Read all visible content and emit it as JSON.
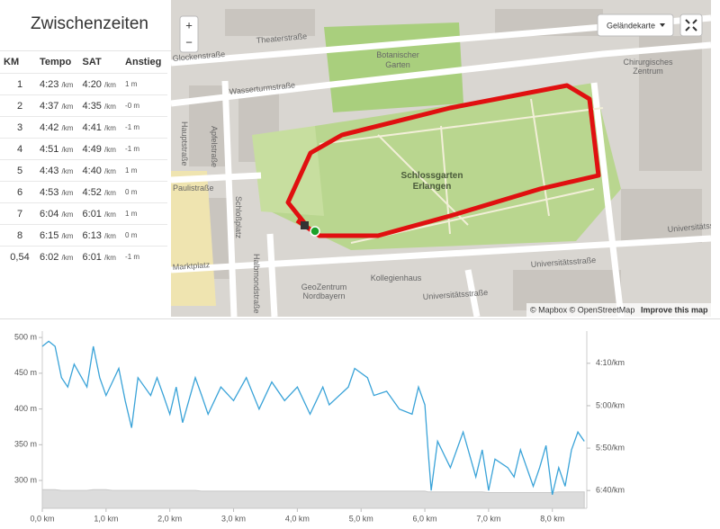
{
  "splits": {
    "title": "Zwischenzeiten",
    "headers": [
      "KM",
      "Tempo",
      "SAT",
      "Anstieg"
    ],
    "unit": "/km",
    "rows": [
      {
        "km": "1",
        "pace": "4:23",
        "sat": "4:20",
        "elev": "1 m"
      },
      {
        "km": "2",
        "pace": "4:37",
        "sat": "4:35",
        "elev": "-0 m"
      },
      {
        "km": "3",
        "pace": "4:42",
        "sat": "4:41",
        "elev": "-1 m"
      },
      {
        "km": "4",
        "pace": "4:51",
        "sat": "4:49",
        "elev": "-1 m"
      },
      {
        "km": "5",
        "pace": "4:43",
        "sat": "4:40",
        "elev": "1 m"
      },
      {
        "km": "6",
        "pace": "4:53",
        "sat": "4:52",
        "elev": "0 m"
      },
      {
        "km": "7",
        "pace": "6:04",
        "sat": "6:01",
        "elev": "1 m"
      },
      {
        "km": "8",
        "pace": "6:15",
        "sat": "6:13",
        "elev": "0 m"
      },
      {
        "km": "0,54",
        "pace": "6:02",
        "sat": "6:01",
        "elev": "-1 m"
      }
    ]
  },
  "map": {
    "zoom_in": "+",
    "zoom_out": "−",
    "layer": "Geländekarte",
    "attribution": "© Mapbox © OpenStreetMap",
    "improve": "Improve this map",
    "labels": [
      "Theaterstraße",
      "Glockenstraße",
      "Wasserturmstraße",
      "Botanischer",
      "Garten",
      "Chirurgisches",
      "Zentrum",
      "Schlossgarten",
      "Erlangen",
      "Apfelstraße",
      "Hauptstraße",
      "Paulistraße",
      "Schloßplatz",
      "Marktplatz",
      "Halbmondstraße",
      "GeoZentrum",
      "Nordbayern",
      "Kollegienhaus",
      "Universitätsstraße",
      "Universitätsstraße",
      "Universitätsstraße"
    ]
  },
  "chart_data": {
    "type": "line",
    "x": [
      0.0,
      0.1,
      0.2,
      0.3,
      0.4,
      0.5,
      0.7,
      0.8,
      0.9,
      1.0,
      1.1,
      1.2,
      1.3,
      1.4,
      1.5,
      1.7,
      1.8,
      1.9,
      2.0,
      2.1,
      2.2,
      2.4,
      2.5,
      2.6,
      2.8,
      3.0,
      3.2,
      3.4,
      3.6,
      3.8,
      4.0,
      4.2,
      4.4,
      4.5,
      4.8,
      4.9,
      5.1,
      5.2,
      5.4,
      5.6,
      5.8,
      5.9,
      6.0,
      6.05,
      6.1,
      6.2,
      6.4,
      6.6,
      6.8,
      6.9,
      7.0,
      7.1,
      7.3,
      7.4,
      7.5,
      7.7,
      7.8,
      7.9,
      8.0,
      8.1,
      8.2,
      8.3,
      8.4,
      8.5
    ],
    "series": [
      {
        "name": "Tempo",
        "color": "#3aa3d8",
        "axis": "y2",
        "values": [
          230,
          224,
          230,
          267,
          278,
          251,
          278,
          230,
          267,
          288,
          272,
          256,
          294,
          326,
          267,
          288,
          267,
          288,
          310,
          278,
          320,
          267,
          288,
          310,
          278,
          294,
          267,
          304,
          272,
          294,
          278,
          310,
          278,
          299,
          278,
          256,
          267,
          288,
          283,
          304,
          310,
          278,
          299,
          352,
          400,
          342,
          373,
          331,
          384,
          352,
          400,
          363,
          373,
          384,
          352,
          395,
          373,
          347,
          405,
          373,
          395,
          352,
          331,
          342
        ]
      },
      {
        "name": "Höhe",
        "color": "#dcdcdc",
        "values": [
          287,
          287,
          287,
          286,
          286,
          286,
          286,
          287,
          287,
          287,
          286,
          286,
          286,
          286,
          286,
          286,
          286,
          286,
          286,
          286,
          286,
          286,
          285,
          285,
          285,
          285,
          285,
          285,
          285,
          285,
          285,
          285,
          285,
          285,
          285,
          285,
          285,
          285,
          285,
          285,
          285,
          285,
          285,
          284,
          284,
          284,
          284,
          284,
          284,
          284,
          283,
          283,
          283,
          283,
          283,
          283,
          283,
          283,
          283,
          284,
          284,
          284,
          284,
          284
        ]
      }
    ],
    "xlim": [
      0,
      8.54
    ],
    "xticks": [
      {
        "value": 0,
        "label": "0,0 km"
      },
      {
        "value": 1,
        "label": "1,0 km"
      },
      {
        "value": 2,
        "label": "2,0 km"
      },
      {
        "value": 3,
        "label": "3,0 km"
      },
      {
        "value": 4,
        "label": "4,0 km"
      },
      {
        "value": 5,
        "label": "5,0 km"
      },
      {
        "value": 6,
        "label": "6,0 km"
      },
      {
        "value": 7,
        "label": "7,0 km"
      },
      {
        "value": 8,
        "label": "8,0 km"
      }
    ],
    "ylim": [
      261,
      509
    ],
    "yticks": [
      {
        "value": 300,
        "label": "300 m"
      },
      {
        "value": 350,
        "label": "350 m"
      },
      {
        "value": 400,
        "label": "400 m"
      },
      {
        "value": 450,
        "label": "450 m"
      },
      {
        "value": 500,
        "label": "500 m"
      }
    ],
    "y2lim": [
      421,
      212
    ],
    "y2ticks": [
      {
        "value": 250,
        "label": "4:10/km"
      },
      {
        "value": 300,
        "label": "5:00/km"
      },
      {
        "value": 350,
        "label": "5:50/km"
      },
      {
        "value": 400,
        "label": "6:40/km"
      }
    ]
  }
}
